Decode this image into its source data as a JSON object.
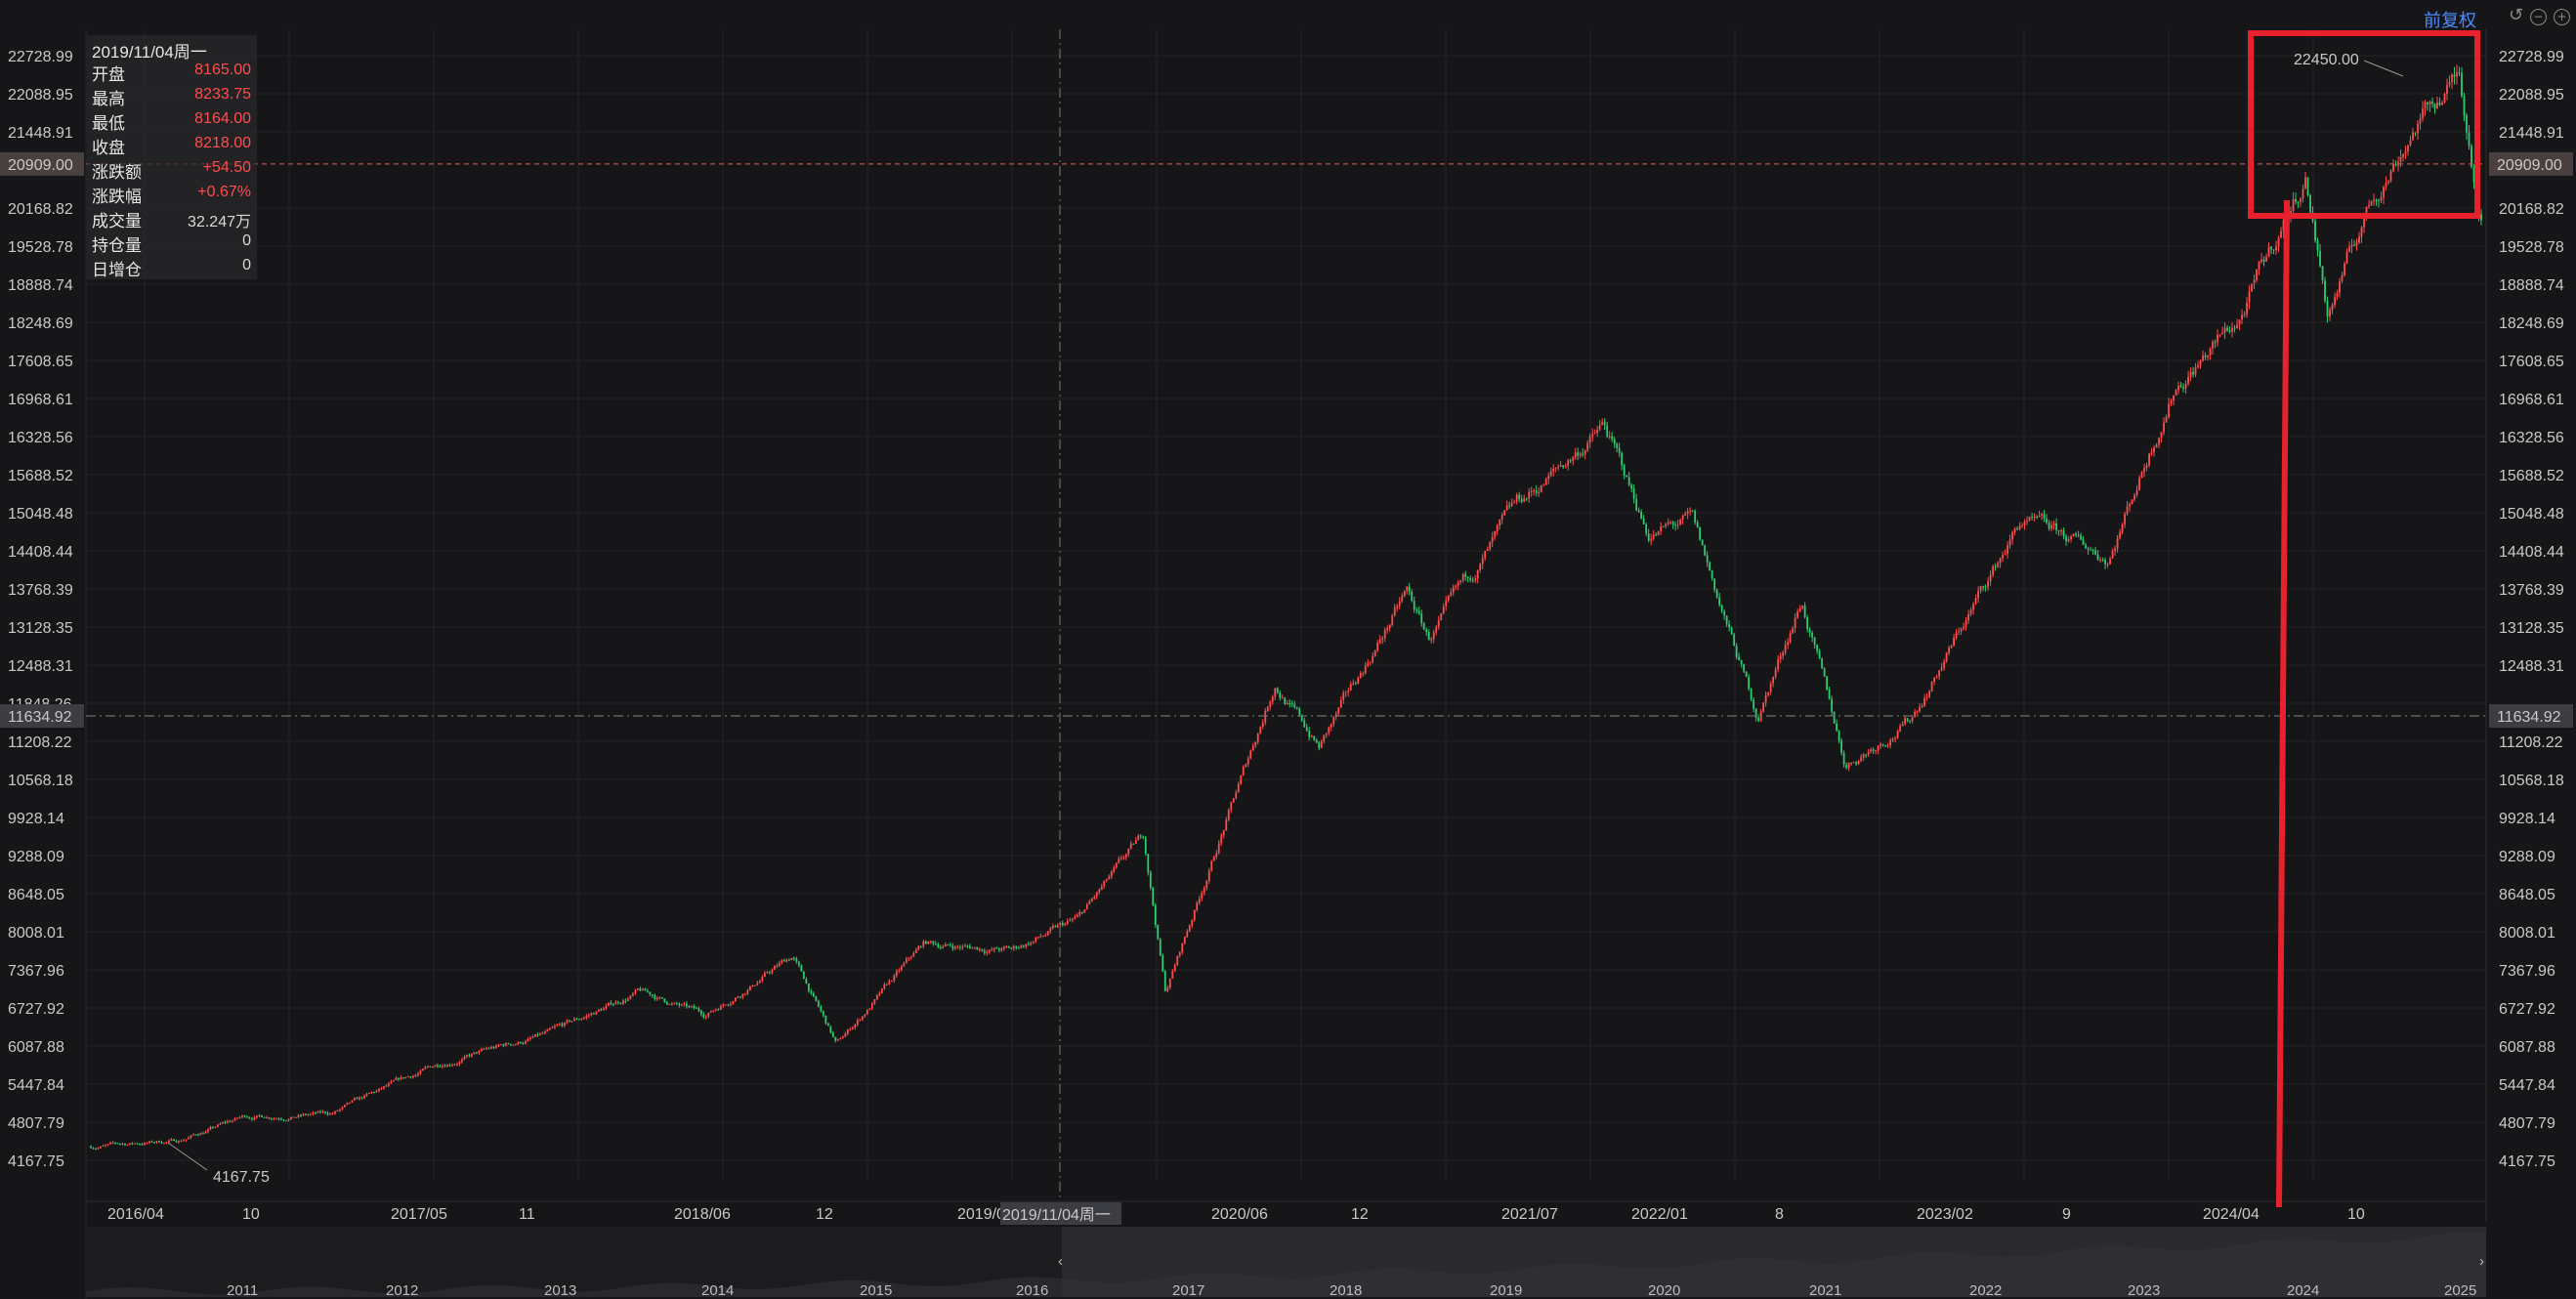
{
  "toolbar": {
    "adjust_label": "前复权",
    "icons": [
      "undo-icon",
      "zoom-out-icon",
      "zoom-in-icon"
    ]
  },
  "info_panel": {
    "date": "2019/11/04周一",
    "rows": [
      {
        "label": "开盘",
        "value": "8165.00",
        "color": "#ff4d4d"
      },
      {
        "label": "最高",
        "value": "8233.75",
        "color": "#ff4d4d"
      },
      {
        "label": "最低",
        "value": "8164.00",
        "color": "#ff4d4d"
      },
      {
        "label": "收盘",
        "value": "8218.00",
        "color": "#ff4d4d"
      },
      {
        "label": "涨跌额",
        "value": "+54.50",
        "color": "#ff4d4d"
      },
      {
        "label": "涨跌幅",
        "value": "+0.67%",
        "color": "#ff4d4d"
      },
      {
        "label": "成交量",
        "value": "32.247万",
        "color": "#d8d8d8"
      },
      {
        "label": "持仓量",
        "value": "0",
        "color": "#d8d8d8"
      },
      {
        "label": "日增仓",
        "value": "0",
        "color": "#d8d8d8"
      }
    ]
  },
  "chart_data": {
    "type": "candlestick",
    "x_axis_labels": [
      "2016/04",
      "10",
      "2017/05",
      "11",
      "2018/06",
      "12",
      "2019/0",
      "2020/06",
      "12",
      "2021/07",
      "2022/01",
      "8",
      "2023/02",
      "9",
      "2024/04",
      "10"
    ],
    "y_ticks_left": [
      "22728.99",
      "22088.95",
      "21448.91",
      "20909.00",
      "20168.82",
      "19528.78",
      "18888.74",
      "18248.69",
      "17608.65",
      "16968.61",
      "16328.56",
      "15688.52",
      "15048.48",
      "14408.44",
      "13768.39",
      "13128.35",
      "12488.31",
      "11848.26",
      "11634.92",
      "11208.22",
      "10568.18",
      "9928.14",
      "9288.09",
      "8648.05",
      "8008.01",
      "7367.96",
      "6727.92",
      "6087.88",
      "5447.84",
      "4807.79",
      "4167.75"
    ],
    "y_ticks_right": [
      "22728.99",
      "22088.95",
      "21448.91",
      "20909.00",
      "20168.82",
      "19528.78",
      "18888.74",
      "18248.69",
      "17608.65",
      "16968.61",
      "16328.56",
      "15688.52",
      "15048.48",
      "14408.44",
      "13768.39",
      "13128.35",
      "12488.31",
      "11634.92",
      "11208.22",
      "10568.18",
      "9928.14",
      "9288.09",
      "8648.05",
      "8008.01",
      "7367.96",
      "6727.92",
      "6087.88",
      "5447.84",
      "4807.79",
      "4167.75"
    ],
    "y_range": [
      4167.75,
      22728.99
    ],
    "x_range": [
      "2016-02",
      "2024-12"
    ],
    "crosshair": {
      "date_label": "2019/11/04周一",
      "price_label": "11634.92",
      "price": 11634.92
    },
    "horizontal_marker": {
      "price": 20909.0,
      "label": "20909.00"
    },
    "annotations": [
      {
        "text": "22450.00",
        "type": "max_label",
        "value": 22450.0
      },
      {
        "text": "4167.75",
        "type": "min_label",
        "value": 4167.75
      }
    ],
    "trend_anchors": [
      [
        "2016-02",
        4400
      ],
      [
        "2016-06",
        4500
      ],
      [
        "2016-09",
        4900
      ],
      [
        "2017-01",
        4950
      ],
      [
        "2017-06",
        5800
      ],
      [
        "2017-11",
        6300
      ],
      [
        "2018-03",
        7000
      ],
      [
        "2018-06",
        6600
      ],
      [
        "2018-10",
        7600
      ],
      [
        "2018-12",
        6100
      ],
      [
        "2019-04",
        7800
      ],
      [
        "2019-08",
        7700
      ],
      [
        "2019-11",
        8200
      ],
      [
        "2020-02",
        9600
      ],
      [
        "2020-03",
        7000
      ],
      [
        "2020-06",
        10100
      ],
      [
        "2020-08",
        12200
      ],
      [
        "2020-10",
        11100
      ],
      [
        "2021-02",
        13700
      ],
      [
        "2021-03",
        12900
      ],
      [
        "2021-07",
        15100
      ],
      [
        "2021-11",
        16500
      ],
      [
        "2022-01",
        14700
      ],
      [
        "2022-03",
        14900
      ],
      [
        "2022-06",
        11600
      ],
      [
        "2022-08",
        13600
      ],
      [
        "2022-10",
        10800
      ],
      [
        "2023-01",
        11600
      ],
      [
        "2023-06",
        14900
      ],
      [
        "2023-10",
        14300
      ],
      [
        "2024-01",
        17200
      ],
      [
        "2024-04",
        18300
      ],
      [
        "2024-07",
        20700
      ],
      [
        "2024-08",
        18400
      ],
      [
        "2024-10",
        20300
      ],
      [
        "2024-12",
        21600
      ],
      [
        "2025-02",
        22400
      ],
      [
        "2025-03",
        20100
      ]
    ],
    "navigator": {
      "labels": [
        "2011",
        "2012",
        "2013",
        "2014",
        "2015",
        "2016",
        "2017",
        "2018",
        "2019",
        "2020",
        "2021",
        "2022",
        "2023",
        "2024",
        "2025"
      ]
    },
    "colors": {
      "up": "#ff4d4d",
      "down": "#2ecc71",
      "highlight": "#e8222c",
      "crosshair": "#6b6b6b",
      "marker": "#c0504d"
    }
  }
}
